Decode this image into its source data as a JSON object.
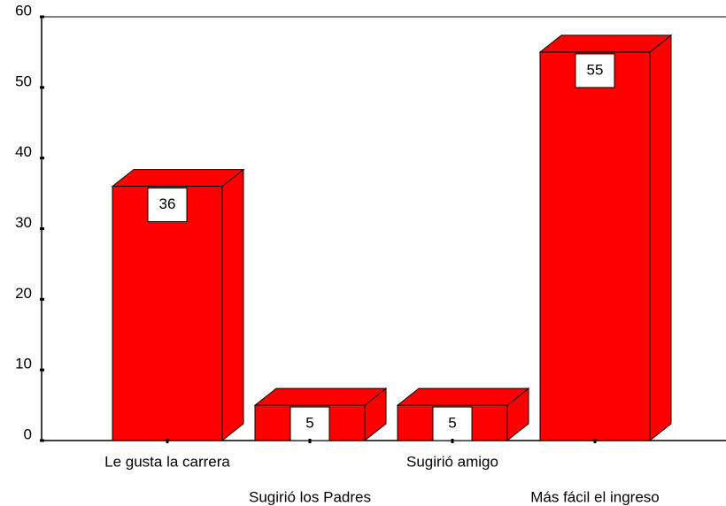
{
  "chart_data": {
    "type": "bar3d",
    "categories": [
      "Le gusta la carrera",
      "Sugirió los Padres",
      "Sugirió  amigo",
      "Más fácil el ingreso"
    ],
    "values": [
      36,
      5,
      5,
      55
    ],
    "color": "#ff0000",
    "ylim": [
      0,
      60
    ],
    "yticks": [
      0,
      10,
      20,
      30,
      40,
      50,
      60
    ]
  }
}
